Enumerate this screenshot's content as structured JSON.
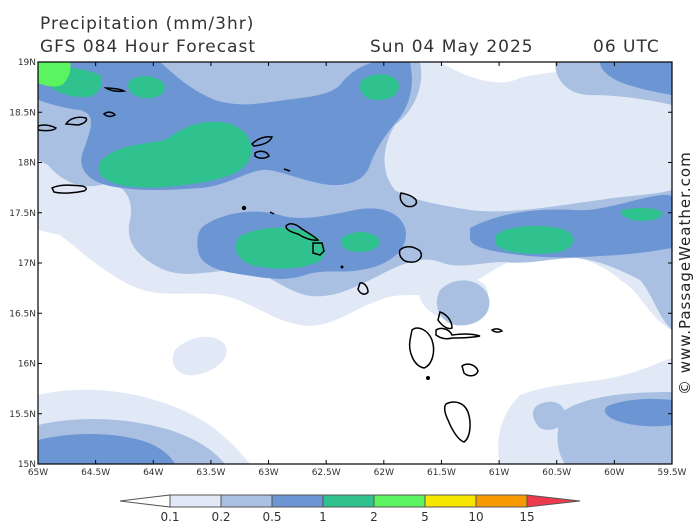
{
  "header": {
    "title": "Precipitation (mm/3hr)",
    "subtitle": "GFS 084 Hour Forecast",
    "date": "Sun 04 May 2025",
    "time": "06 UTC"
  },
  "watermark": "© www.PassageWeather.com",
  "axes": {
    "lat_labels": [
      "19N",
      "18.5N",
      "18N",
      "17.5N",
      "17N",
      "16.5N",
      "16N",
      "15.5N",
      "15N"
    ],
    "lon_labels": [
      "65W",
      "64.5W",
      "64W",
      "63.5W",
      "63W",
      "62.5W",
      "62W",
      "61.5W",
      "61W",
      "60.5W",
      "60W",
      "59.5W"
    ]
  },
  "legend": {
    "labels": [
      "0.1",
      "0.2",
      "0.5",
      "1",
      "2",
      "5",
      "10",
      "15"
    ],
    "colors": [
      "#ffffff",
      "#e1e9f6",
      "#aac0e2",
      "#6c95d4",
      "#2fc28e",
      "#5bf35f",
      "#f6e600",
      "#f79a00",
      "#ee3a4e"
    ]
  }
}
